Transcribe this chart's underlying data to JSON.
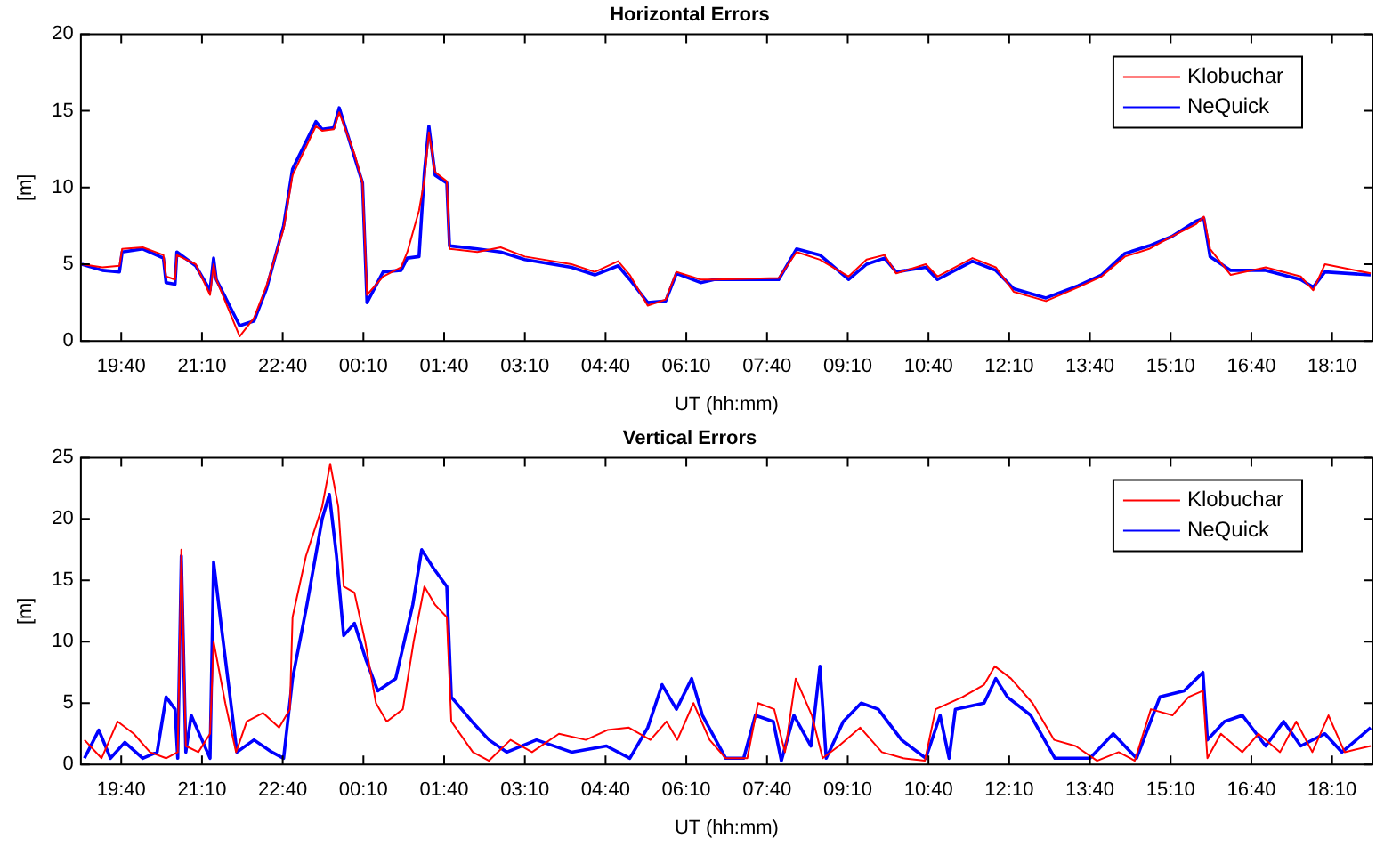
{
  "chart_data": [
    {
      "type": "line",
      "title": "Horizontal Errors",
      "xlabel": "UT (hh:mm)",
      "ylabel": "[m]",
      "xlim": [
        "--01-01T18:55",
        "--01-02T18:55"
      ],
      "ylim": [
        0,
        20
      ],
      "yticks": [
        0,
        5,
        10,
        15,
        20
      ],
      "xticks": [
        {
          "value": "--01-01T19:40",
          "label": "19:40"
        },
        {
          "value": "--01-01T21:10",
          "label": "21:10"
        },
        {
          "value": "--01-01T22:40",
          "label": "22:40"
        },
        {
          "value": "--01-02T00:10",
          "label": "00:10"
        },
        {
          "value": "--01-02T01:40",
          "label": "01:40"
        },
        {
          "value": "--01-02T03:10",
          "label": "03:10"
        },
        {
          "value": "--01-02T04:40",
          "label": "04:40"
        },
        {
          "value": "--01-02T06:10",
          "label": "06:10"
        },
        {
          "value": "--01-02T07:40",
          "label": "07:40"
        },
        {
          "value": "--01-02T09:10",
          "label": "09:10"
        },
        {
          "value": "--01-02T10:40",
          "label": "10:40"
        },
        {
          "value": "--01-02T12:10",
          "label": "12:10"
        },
        {
          "value": "--01-02T13:40",
          "label": "13:40"
        },
        {
          "value": "--01-02T15:10",
          "label": "15:10"
        },
        {
          "value": "--01-02T16:40",
          "label": "16:40"
        },
        {
          "value": "--01-02T18:10",
          "label": "18:10"
        }
      ],
      "x": [
        "--01-01T18:56",
        "--01-01T19:19",
        "--01-01T19:38",
        "--01-01T19:41",
        "--01-01T20:04",
        "--01-01T20:27",
        "--01-01T20:30",
        "--01-01T20:40",
        "--01-01T20:42",
        "--01-01T21:03",
        "--01-01T21:19",
        "--01-01T21:23",
        "--01-01T21:26",
        "--01-01T21:52",
        "--01-01T22:08",
        "--01-01T22:22",
        "--01-01T22:41",
        "--01-01T22:51",
        "--01-01T23:17",
        "--01-01T23:24",
        "--01-01T23:37",
        "--01-01T23:43",
        "--01-02T00:00",
        "--01-02T00:09",
        "--01-02T00:14",
        "--01-02T00:32",
        "--01-02T00:52",
        "--01-02T00:59",
        "--01-02T01:12",
        "--01-02T01:18",
        "--01-02T01:23",
        "--01-02T01:30",
        "--01-02T01:43",
        "--01-02T01:46",
        "--01-02T02:17",
        "--01-02T02:43",
        "--01-02T03:10",
        "--01-02T04:02",
        "--01-02T04:28",
        "--01-02T04:54",
        "--01-02T05:07",
        "--01-02T05:27",
        "--01-02T05:47",
        "--01-02T05:59",
        "--01-02T06:26",
        "--01-02T06:41",
        "--01-02T07:53",
        "--01-02T08:13",
        "--01-02T08:39",
        "--01-02T09:11",
        "--01-02T09:31",
        "--01-02T09:51",
        "--01-02T10:04",
        "--01-02T10:37",
        "--01-02T10:50",
        "--01-02T11:29",
        "--01-02T11:55",
        "--01-02T12:15",
        "--01-02T12:51",
        "--01-02T13:27",
        "--01-02T13:53",
        "--01-02T14:19",
        "--01-02T14:46",
        "--01-02T15:11",
        "--01-02T15:38",
        "--01-02T15:47",
        "--01-02T15:54",
        "--01-02T16:17",
        "--01-02T16:56",
        "--01-02T17:35",
        "--01-02T17:49",
        "--01-02T18:02",
        "--01-02T18:53"
      ],
      "grid": false,
      "legend": "top right",
      "marker": "none",
      "line_style": "solid",
      "series": [
        {
          "name": "Klobuchar",
          "color": "#ff0000",
          "values": [
            5.0,
            4.8,
            4.9,
            6.0,
            6.1,
            5.6,
            4.2,
            4.0,
            5.6,
            5.0,
            3.0,
            5.0,
            4.0,
            0.3,
            1.5,
            3.6,
            7.3,
            10.8,
            14.0,
            13.7,
            13.8,
            14.9,
            12.2,
            10.3,
            3.0,
            4.2,
            4.8,
            5.8,
            8.5,
            10.5,
            13.6,
            11.0,
            10.4,
            6.0,
            5.8,
            6.1,
            5.5,
            5.0,
            4.5,
            5.2,
            4.3,
            2.3,
            2.7,
            4.5,
            4.0,
            4.0,
            4.1,
            5.8,
            5.3,
            4.2,
            5.3,
            5.6,
            4.4,
            5.0,
            4.2,
            5.4,
            4.8,
            3.2,
            2.6,
            3.5,
            4.2,
            5.5,
            6.0,
            6.8,
            7.6,
            8.1,
            6.0,
            4.3,
            4.8,
            4.2,
            3.3,
            5.0,
            4.4
          ]
        },
        {
          "name": "NeQuick",
          "color": "#0000ff",
          "values": [
            5.0,
            4.6,
            4.5,
            5.8,
            6.0,
            5.4,
            3.8,
            3.7,
            5.8,
            4.9,
            3.3,
            5.4,
            4.0,
            1.0,
            1.3,
            3.4,
            7.5,
            11.2,
            14.3,
            13.8,
            13.9,
            15.2,
            12.0,
            10.3,
            2.5,
            4.5,
            4.6,
            5.4,
            5.5,
            11.0,
            14.0,
            10.8,
            10.3,
            6.2,
            6.0,
            5.8,
            5.3,
            4.8,
            4.3,
            4.9,
            4.0,
            2.5,
            2.6,
            4.4,
            3.8,
            4.0,
            4.0,
            6.0,
            5.6,
            4.0,
            5.0,
            5.4,
            4.5,
            4.8,
            4.0,
            5.2,
            4.6,
            3.4,
            2.8,
            3.6,
            4.3,
            5.7,
            6.2,
            6.8,
            7.8,
            8.0,
            5.5,
            4.6,
            4.6,
            4.0,
            3.5,
            4.5,
            4.3
          ]
        }
      ]
    },
    {
      "type": "line",
      "title": "Vertical Errors",
      "xlabel": "UT (hh:mm)",
      "ylabel": "[m]",
      "xlim": [
        "--01-01T18:55",
        "--01-02T18:55"
      ],
      "ylim": [
        0,
        25
      ],
      "yticks": [
        0,
        5,
        10,
        15,
        20,
        25
      ],
      "xticks": [
        {
          "value": "--01-01T19:40",
          "label": "19:40"
        },
        {
          "value": "--01-01T21:10",
          "label": "21:10"
        },
        {
          "value": "--01-01T22:40",
          "label": "22:40"
        },
        {
          "value": "--01-02T00:10",
          "label": "00:10"
        },
        {
          "value": "--01-02T01:40",
          "label": "01:40"
        },
        {
          "value": "--01-02T03:10",
          "label": "03:10"
        },
        {
          "value": "--01-02T04:40",
          "label": "04:40"
        },
        {
          "value": "--01-02T06:10",
          "label": "06:10"
        },
        {
          "value": "--01-02T07:40",
          "label": "07:40"
        },
        {
          "value": "--01-02T09:10",
          "label": "09:10"
        },
        {
          "value": "--01-02T10:40",
          "label": "10:40"
        },
        {
          "value": "--01-02T12:10",
          "label": "12:10"
        },
        {
          "value": "--01-02T13:40",
          "label": "13:40"
        },
        {
          "value": "--01-02T15:10",
          "label": "15:10"
        },
        {
          "value": "--01-02T16:40",
          "label": "16:40"
        },
        {
          "value": "--01-02T18:10",
          "label": "18:10"
        }
      ],
      "grid": false,
      "legend": "top right",
      "marker": "none",
      "line_style": "solid",
      "series": [
        {
          "name": "Klobuchar",
          "color": "#ff0000",
          "x": [
            "--01-01T18:59",
            "--01-01T19:18",
            "--01-01T19:36",
            "--01-01T19:54",
            "--01-01T20:12",
            "--01-01T20:30",
            "--01-01T20:43",
            "--01-01T20:47",
            "--01-01T20:52",
            "--01-01T21:06",
            "--01-01T21:19",
            "--01-01T21:23",
            "--01-01T21:36",
            "--01-01T21:48",
            "--01-01T22:00",
            "--01-01T22:18",
            "--01-01T22:36",
            "--01-01T22:48",
            "--01-01T22:51",
            "--01-01T23:06",
            "--01-01T23:24",
            "--01-01T23:33",
            "--01-01T23:42",
            "--01-01T23:48",
            "--01-02T00:00",
            "--01-02T00:12",
            "--01-02T00:24",
            "--01-02T00:36",
            "--01-02T00:54",
            "--01-02T01:06",
            "--01-02T01:18",
            "--01-02T01:30",
            "--01-02T01:43",
            "--01-02T01:48",
            "--01-02T02:12",
            "--01-02T02:30",
            "--01-02T02:54",
            "--01-02T03:18",
            "--01-02T03:48",
            "--01-02T04:18",
            "--01-02T04:42",
            "--01-02T05:06",
            "--01-02T05:30",
            "--01-02T05:48",
            "--01-02T06:00",
            "--01-02T06:18",
            "--01-02T06:36",
            "--01-02T06:54",
            "--01-02T07:18",
            "--01-02T07:30",
            "--01-02T07:48",
            "--01-02T08:00",
            "--01-02T08:12",
            "--01-02T08:30",
            "--01-02T08:42",
            "--01-02T09:00",
            "--01-02T09:24",
            "--01-02T09:48",
            "--01-02T10:12",
            "--01-02T10:36",
            "--01-02T10:48",
            "--01-02T11:18",
            "--01-02T11:42",
            "--01-02T11:54",
            "--01-02T12:12",
            "--01-02T12:36",
            "--01-02T13:00",
            "--01-02T13:24",
            "--01-02T13:48",
            "--01-02T14:12",
            "--01-02T14:30",
            "--01-02T14:48",
            "--01-02T15:12",
            "--01-02T15:30",
            "--01-02T15:46",
            "--01-02T15:51",
            "--01-02T16:06",
            "--01-02T16:30",
            "--01-02T16:48",
            "--01-02T17:12",
            "--01-02T17:30",
            "--01-02T17:48",
            "--01-02T18:06",
            "--01-02T18:24",
            "--01-02T18:53"
          ],
          "values": [
            2.0,
            0.5,
            3.5,
            2.5,
            1.0,
            0.5,
            1.0,
            17.5,
            1.5,
            1.0,
            2.5,
            10.0,
            5.0,
            1.0,
            3.5,
            4.2,
            3.0,
            4.5,
            12,
            17,
            21,
            24.5,
            21,
            14.5,
            14.0,
            10.0,
            5.0,
            3.5,
            4.5,
            10,
            14.5,
            13,
            12,
            3.5,
            1.0,
            0.3,
            2.0,
            1.0,
            2.5,
            2.0,
            2.8,
            3.0,
            2.0,
            3.5,
            2.0,
            5.0,
            2.0,
            0.5,
            0.5,
            5.0,
            4.5,
            1.0,
            7.0,
            4.0,
            0.5,
            1.5,
            3.0,
            1.0,
            0.5,
            0.3,
            4.5,
            5.5,
            6.5,
            8.0,
            7.0,
            5.0,
            2.0,
            1.5,
            0.3,
            1.0,
            0.3,
            4.5,
            4.0,
            5.5,
            6.0,
            0.5,
            2.5,
            1.0,
            2.5,
            1.0,
            3.5,
            1.0,
            4.0,
            1.0,
            1.5
          ]
        },
        {
          "name": "NeQuick",
          "color": "#0000ff",
          "x": [
            "--01-01T18:59",
            "--01-01T19:15",
            "--01-01T19:28",
            "--01-01T19:44",
            "--01-01T20:04",
            "--01-01T20:20",
            "--01-01T20:30",
            "--01-01T20:40",
            "--01-01T20:43",
            "--01-01T20:47",
            "--01-01T20:52",
            "--01-01T20:58",
            "--01-01T21:10",
            "--01-01T21:19",
            "--01-01T21:23",
            "--01-01T21:32",
            "--01-01T21:49",
            "--01-01T22:08",
            "--01-01T22:28",
            "--01-01T22:41",
            "--01-01T22:51",
            "--01-01T23:07",
            "--01-01T23:24",
            "--01-01T23:32",
            "--01-01T23:40",
            "--01-01T23:48",
            "--01-02T00:00",
            "--01-02T00:13",
            "--01-02T00:26",
            "--01-02T00:46",
            "--01-02T01:05",
            "--01-02T01:15",
            "--01-02T01:28",
            "--01-02T01:43",
            "--01-02T01:48",
            "--01-02T02:11",
            "--01-02T02:30",
            "--01-02T02:50",
            "--01-02T03:23",
            "--01-02T04:02",
            "--01-02T04:41",
            "--01-02T05:07",
            "--01-02T05:27",
            "--01-02T05:43",
            "--01-02T05:59",
            "--01-02T06:16",
            "--01-02T06:28",
            "--01-02T06:54",
            "--01-02T07:14",
            "--01-02T07:27",
            "--01-02T07:47",
            "--01-02T07:56",
            "--01-02T08:10",
            "--01-02T08:29",
            "--01-02T08:39",
            "--01-02T08:46",
            "--01-02T09:05",
            "--01-02T09:25",
            "--01-02T09:44",
            "--01-02T10:10",
            "--01-02T10:37",
            "--01-02T10:53",
            "--01-02T11:03",
            "--01-02T11:10",
            "--01-02T11:42",
            "--01-02T11:55",
            "--01-02T12:08",
            "--01-02T12:34",
            "--01-02T13:01",
            "--01-02T13:40",
            "--01-02T14:06",
            "--01-02T14:32",
            "--01-02T14:58",
            "--01-02T15:25",
            "--01-02T15:46",
            "--01-02T15:51",
            "--01-02T16:10",
            "--01-02T16:30",
            "--01-02T16:56",
            "--01-02T17:16",
            "--01-02T17:35",
            "--01-02T18:02",
            "--01-02T18:21",
            "--01-02T18:53"
          ],
          "values": [
            0.5,
            2.8,
            0.5,
            1.8,
            0.5,
            1.0,
            5.5,
            4.5,
            0.5,
            17.0,
            1.0,
            4.0,
            2.0,
            0.5,
            16.5,
            11,
            1,
            2,
            1.0,
            0.5,
            7,
            13,
            20,
            22,
            17,
            10.5,
            11.5,
            8.5,
            6.0,
            7.0,
            13.0,
            17.5,
            16,
            14.5,
            5.5,
            3.5,
            2.0,
            1.0,
            2.0,
            1.0,
            1.5,
            0.5,
            3.0,
            6.5,
            4.5,
            7.0,
            4.0,
            0.5,
            0.5,
            4.0,
            3.5,
            0.3,
            4.0,
            1.5,
            8.0,
            0.5,
            3.5,
            5.0,
            4.5,
            2.0,
            0.5,
            4.0,
            0.5,
            4.5,
            5.0,
            7.0,
            5.5,
            4.0,
            0.5,
            0.5,
            2.5,
            0.5,
            5.5,
            6.0,
            7.5,
            2.0,
            3.5,
            4.0,
            1.5,
            3.5,
            1.5,
            2.5,
            1.0,
            3.0
          ]
        }
      ]
    }
  ]
}
